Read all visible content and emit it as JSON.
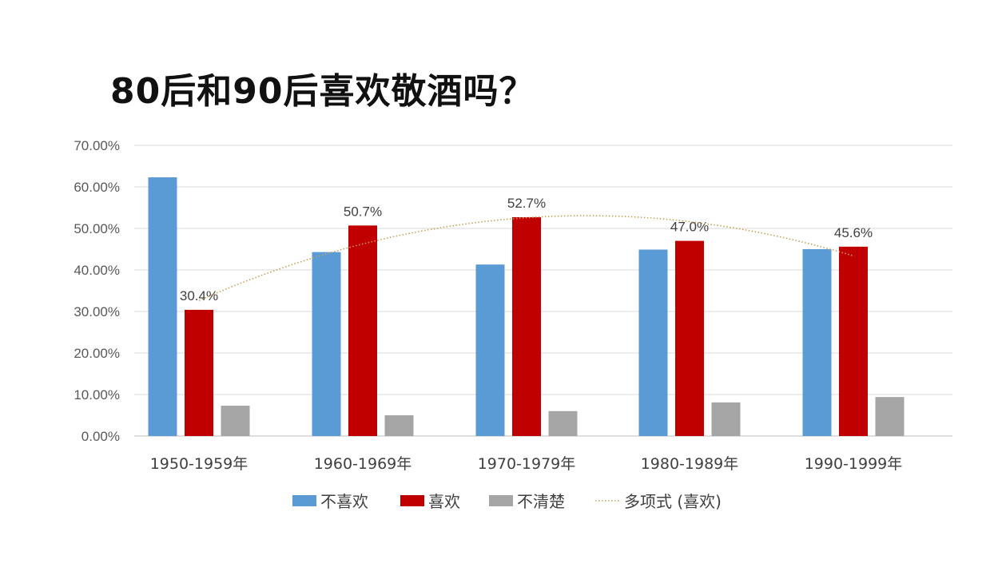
{
  "title": "80后和90后喜欢敬酒吗？",
  "chart_data": {
    "type": "bar",
    "title": "80后和90后喜欢敬酒吗？",
    "categories": [
      "1950-1959年",
      "1960-1969年",
      "1970-1979年",
      "1980-1989年",
      "1990-1999年"
    ],
    "series": [
      {
        "name": "不喜欢",
        "color": "#5B9BD5",
        "values": [
          0.623,
          0.443,
          0.413,
          0.449,
          0.45
        ]
      },
      {
        "name": "喜欢",
        "color": "#C00000",
        "values": [
          0.304,
          0.507,
          0.527,
          0.47,
          0.456
        ]
      },
      {
        "name": "不清楚",
        "color": "#A5A5A5",
        "values": [
          0.073,
          0.05,
          0.06,
          0.081,
          0.094
        ]
      }
    ],
    "data_labels": {
      "series": "喜欢",
      "labels": [
        "30.4%",
        "50.7%",
        "52.7%",
        "47.0%",
        "45.6%"
      ]
    },
    "trendline": {
      "name": "多项式 (喜欢)",
      "type": "polynomial",
      "of_series": "喜欢",
      "color": "#C5A15A",
      "style": "dotted"
    },
    "ylim": [
      0,
      0.7
    ],
    "yticks": [
      "0.00%",
      "10.00%",
      "20.00%",
      "30.00%",
      "40.00%",
      "50.00%",
      "60.00%",
      "70.00%"
    ],
    "grid": true,
    "legend": "bottom"
  }
}
